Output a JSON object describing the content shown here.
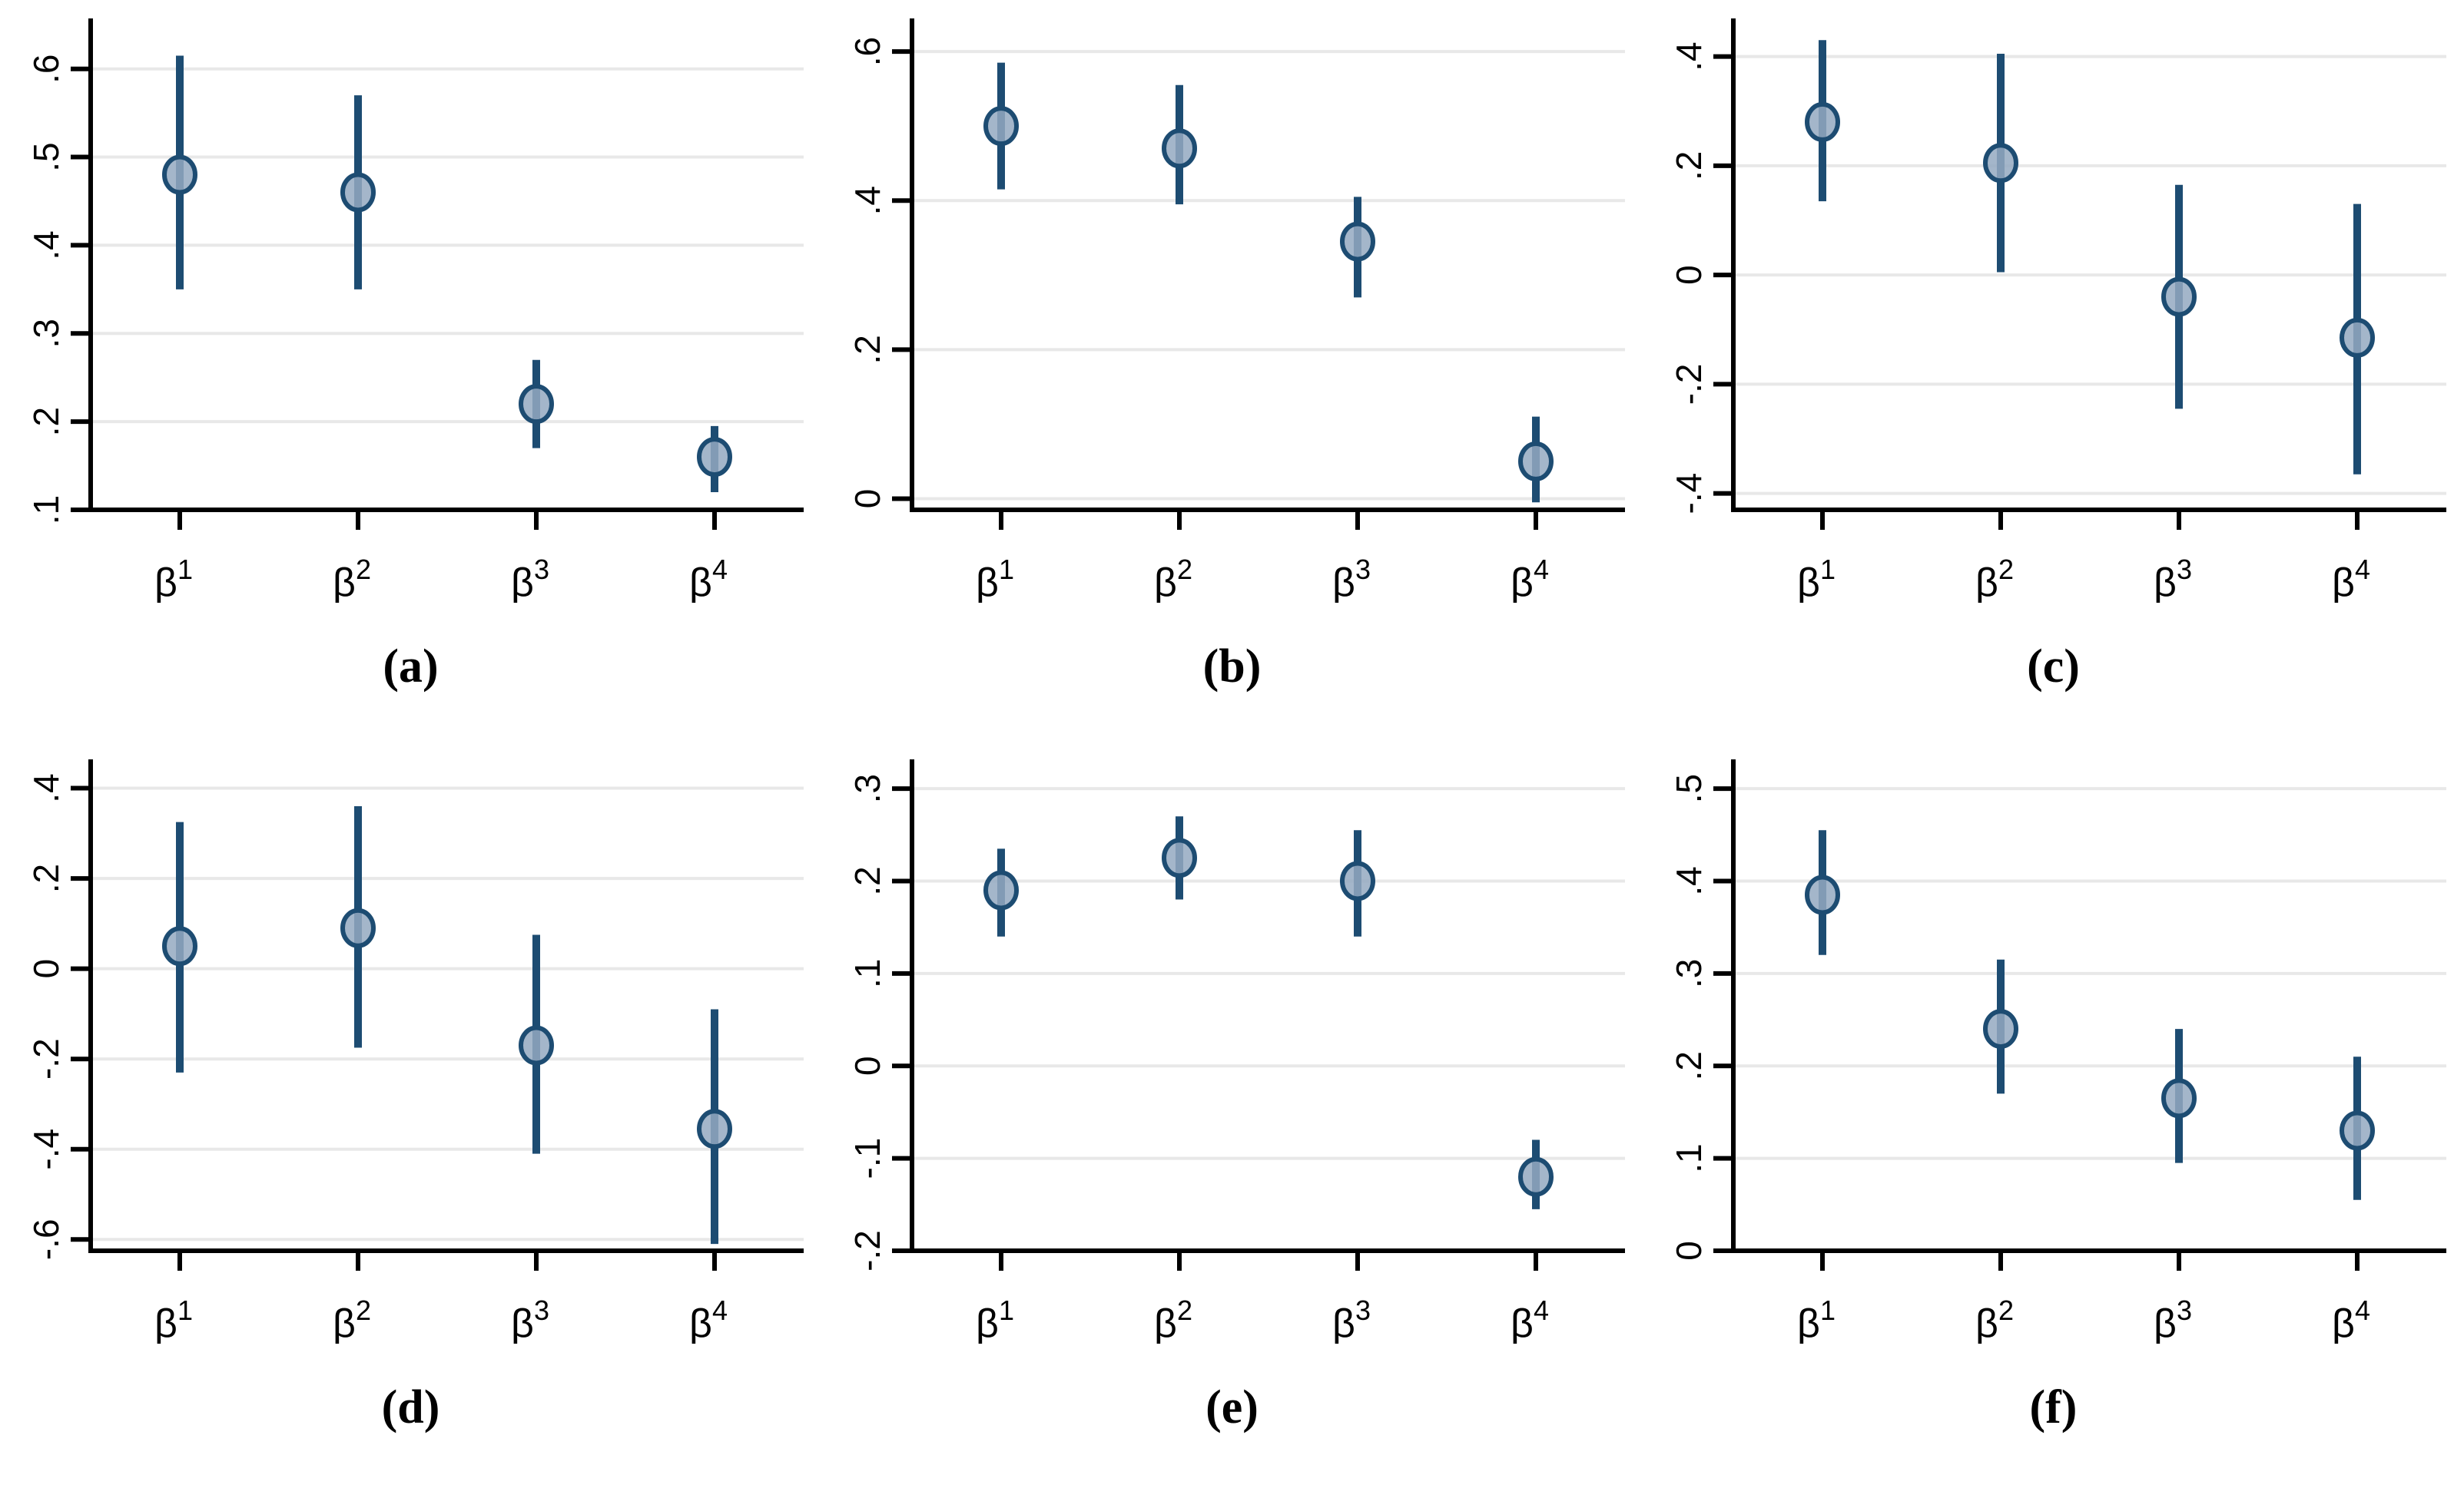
{
  "figure": {
    "background": "#ffffff",
    "grid_color": "#e8e8e8",
    "axis_color": "#000000",
    "ci_color": "#1d4c72",
    "marker_fill": "#94a9c1",
    "marker_stroke": "#1d4c72"
  },
  "chart_data": [
    {
      "id": "a",
      "caption": "(a)",
      "type": "scatter",
      "legend": "none",
      "grid": "horizontal",
      "x_ticks": [
        {
          "base": "β",
          "sup": "1"
        },
        {
          "base": "β",
          "sup": "2"
        },
        {
          "base": "β",
          "sup": "3"
        },
        {
          "base": "β",
          "sup": "4"
        }
      ],
      "ylim": [
        0.1,
        0.645
      ],
      "yticks": [
        {
          "v": 0.1,
          "label": ".1"
        },
        {
          "v": 0.2,
          "label": ".2"
        },
        {
          "v": 0.3,
          "label": ".3"
        },
        {
          "v": 0.4,
          "label": ".4"
        },
        {
          "v": 0.5,
          "label": ".5"
        },
        {
          "v": 0.6,
          "label": ".6"
        }
      ],
      "points": [
        {
          "x": "β1",
          "est": 0.48,
          "lo": 0.35,
          "hi": 0.615
        },
        {
          "x": "β2",
          "est": 0.46,
          "lo": 0.35,
          "hi": 0.57
        },
        {
          "x": "β3",
          "est": 0.22,
          "lo": 0.17,
          "hi": 0.27
        },
        {
          "x": "β4",
          "est": 0.16,
          "lo": 0.12,
          "hi": 0.195
        }
      ]
    },
    {
      "id": "b",
      "caption": "(b)",
      "type": "scatter",
      "legend": "none",
      "grid": "horizontal",
      "x_ticks": [
        {
          "base": "β",
          "sup": "1"
        },
        {
          "base": "β",
          "sup": "2"
        },
        {
          "base": "β",
          "sup": "3"
        },
        {
          "base": "β",
          "sup": "4"
        }
      ],
      "ylim": [
        -0.015,
        0.63
      ],
      "yticks": [
        {
          "v": 0,
          "label": "0"
        },
        {
          "v": 0.2,
          "label": ".2"
        },
        {
          "v": 0.4,
          "label": ".4"
        },
        {
          "v": 0.6,
          "label": ".6"
        }
      ],
      "points": [
        {
          "x": "β1",
          "est": 0.5,
          "lo": 0.415,
          "hi": 0.585
        },
        {
          "x": "β2",
          "est": 0.47,
          "lo": 0.395,
          "hi": 0.555
        },
        {
          "x": "β3",
          "est": 0.345,
          "lo": 0.27,
          "hi": 0.405
        },
        {
          "x": "β4",
          "est": 0.05,
          "lo": -0.005,
          "hi": 0.11
        }
      ]
    },
    {
      "id": "c",
      "caption": "(c)",
      "type": "scatter",
      "legend": "none",
      "grid": "horizontal",
      "x_ticks": [
        {
          "base": "β",
          "sup": "1"
        },
        {
          "base": "β",
          "sup": "2"
        },
        {
          "base": "β",
          "sup": "3"
        },
        {
          "base": "β",
          "sup": "4"
        }
      ],
      "ylim": [
        -0.43,
        0.45
      ],
      "yticks": [
        {
          "v": -0.4,
          "label": "-.4"
        },
        {
          "v": -0.2,
          "label": "-.2"
        },
        {
          "v": 0,
          "label": "0"
        },
        {
          "v": 0.2,
          "label": ".2"
        },
        {
          "v": 0.4,
          "label": ".4"
        }
      ],
      "points": [
        {
          "x": "β1",
          "est": 0.28,
          "lo": 0.135,
          "hi": 0.43
        },
        {
          "x": "β2",
          "est": 0.205,
          "lo": 0.005,
          "hi": 0.405
        },
        {
          "x": "β3",
          "est": -0.04,
          "lo": -0.245,
          "hi": 0.165
        },
        {
          "x": "β4",
          "est": -0.115,
          "lo": -0.365,
          "hi": 0.13
        }
      ]
    },
    {
      "id": "d",
      "caption": "(d)",
      "type": "scatter",
      "legend": "none",
      "grid": "horizontal",
      "x_ticks": [
        {
          "base": "β",
          "sup": "1"
        },
        {
          "base": "β",
          "sup": "2"
        },
        {
          "base": "β",
          "sup": "3"
        },
        {
          "base": "β",
          "sup": "4"
        }
      ],
      "ylim": [
        -0.625,
        0.44
      ],
      "yticks": [
        {
          "v": -0.6,
          "label": "-.6"
        },
        {
          "v": -0.4,
          "label": "-.4"
        },
        {
          "v": -0.2,
          "label": "-.2"
        },
        {
          "v": 0,
          "label": "0"
        },
        {
          "v": 0.2,
          "label": ".2"
        },
        {
          "v": 0.4,
          "label": ".4"
        }
      ],
      "points": [
        {
          "x": "β1",
          "est": 0.05,
          "lo": -0.23,
          "hi": 0.325
        },
        {
          "x": "β2",
          "est": 0.09,
          "lo": -0.175,
          "hi": 0.36
        },
        {
          "x": "β3",
          "est": -0.17,
          "lo": -0.41,
          "hi": 0.075
        },
        {
          "x": "β4",
          "est": -0.355,
          "lo": -0.61,
          "hi": -0.09
        }
      ]
    },
    {
      "id": "e",
      "caption": "(e)",
      "type": "scatter",
      "legend": "none",
      "grid": "horizontal",
      "x_ticks": [
        {
          "base": "β",
          "sup": "1"
        },
        {
          "base": "β",
          "sup": "2"
        },
        {
          "base": "β",
          "sup": "3"
        },
        {
          "base": "β",
          "sup": "4"
        }
      ],
      "ylim": [
        -0.2,
        0.32
      ],
      "yticks": [
        {
          "v": -0.2,
          "label": "-.2"
        },
        {
          "v": -0.1,
          "label": "-.1"
        },
        {
          "v": 0,
          "label": "0"
        },
        {
          "v": 0.1,
          "label": ".1"
        },
        {
          "v": 0.2,
          "label": ".2"
        },
        {
          "v": 0.3,
          "label": ".3"
        }
      ],
      "points": [
        {
          "x": "β1",
          "est": 0.19,
          "lo": 0.14,
          "hi": 0.235
        },
        {
          "x": "β2",
          "est": 0.225,
          "lo": 0.18,
          "hi": 0.27
        },
        {
          "x": "β3",
          "est": 0.2,
          "lo": 0.14,
          "hi": 0.255
        },
        {
          "x": "β4",
          "est": -0.12,
          "lo": -0.155,
          "hi": -0.08
        }
      ]
    },
    {
      "id": "f",
      "caption": "(f)",
      "type": "scatter",
      "legend": "none",
      "grid": "horizontal",
      "x_ticks": [
        {
          "base": "β",
          "sup": "1"
        },
        {
          "base": "β",
          "sup": "2"
        },
        {
          "base": "β",
          "sup": "3"
        },
        {
          "base": "β",
          "sup": "4"
        }
      ],
      "ylim": [
        0,
        0.52
      ],
      "yticks": [
        {
          "v": 0,
          "label": "0"
        },
        {
          "v": 0.1,
          "label": ".1"
        },
        {
          "v": 0.2,
          "label": ".2"
        },
        {
          "v": 0.3,
          "label": ".3"
        },
        {
          "v": 0.4,
          "label": ".4"
        },
        {
          "v": 0.5,
          "label": ".5"
        }
      ],
      "points": [
        {
          "x": "β1",
          "est": 0.385,
          "lo": 0.32,
          "hi": 0.455
        },
        {
          "x": "β2",
          "est": 0.24,
          "lo": 0.17,
          "hi": 0.315
        },
        {
          "x": "β3",
          "est": 0.165,
          "lo": 0.095,
          "hi": 0.24
        },
        {
          "x": "β4",
          "est": 0.13,
          "lo": 0.055,
          "hi": 0.21
        }
      ]
    }
  ]
}
